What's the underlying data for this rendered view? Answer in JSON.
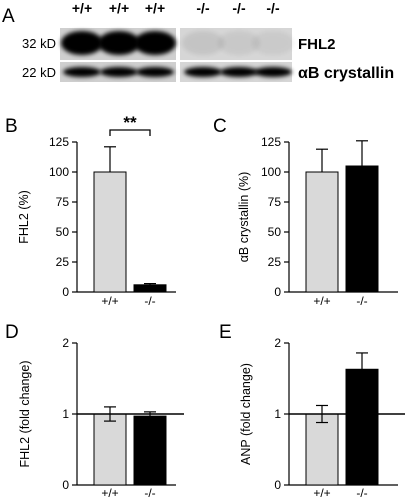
{
  "panel_a": {
    "label": "A",
    "genotypes": [
      "+/+",
      "+/+",
      "+/+",
      "-/-",
      "-/-",
      "-/-"
    ],
    "bands": [
      {
        "size": "32 kD",
        "protein": "FHL2",
        "intensities": [
          1,
          1,
          1,
          0.08,
          0.06,
          0.05
        ]
      },
      {
        "size": "22 kD",
        "protein": "αB crystallin",
        "intensities": [
          1,
          1,
          1,
          1,
          1,
          1
        ]
      }
    ]
  },
  "chart_data": [
    {
      "panel": "B",
      "type": "bar",
      "categories": [
        "+/+",
        "-/-"
      ],
      "values": [
        100,
        6
      ],
      "errors": [
        21,
        1
      ],
      "colors": [
        "#d9d9d9",
        "#000000"
      ],
      "ylabel": "FHL2 (%)",
      "ylim": [
        0,
        125
      ],
      "yticks": [
        0,
        25,
        50,
        75,
        100,
        125
      ],
      "significance": "**"
    },
    {
      "panel": "C",
      "type": "bar",
      "categories": [
        "+/+",
        "-/-"
      ],
      "values": [
        100,
        105
      ],
      "errors": [
        19,
        21
      ],
      "colors": [
        "#d9d9d9",
        "#000000"
      ],
      "ylabel": "αB crystallin (%)",
      "ylim": [
        0,
        125
      ],
      "yticks": [
        0,
        25,
        50,
        75,
        100,
        125
      ]
    },
    {
      "panel": "D",
      "type": "bar",
      "categories": [
        "+/+",
        "-/-"
      ],
      "values": [
        1.0,
        0.97
      ],
      "errors": [
        0.1,
        0.06
      ],
      "colors": [
        "#d9d9d9",
        "#000000"
      ],
      "ylabel": "FHL2 (fold change)",
      "ylim": [
        0,
        2
      ],
      "yticks": [
        0,
        1,
        2
      ],
      "baseline": 1
    },
    {
      "panel": "E",
      "type": "bar",
      "categories": [
        "+/+",
        "-/-"
      ],
      "values": [
        1.0,
        1.63
      ],
      "errors": [
        0.12,
        0.23
      ],
      "colors": [
        "#d9d9d9",
        "#000000"
      ],
      "ylabel": "ANP (fold change)",
      "ylim": [
        0,
        2
      ],
      "yticks": [
        0,
        1,
        2
      ],
      "baseline": 1
    }
  ]
}
